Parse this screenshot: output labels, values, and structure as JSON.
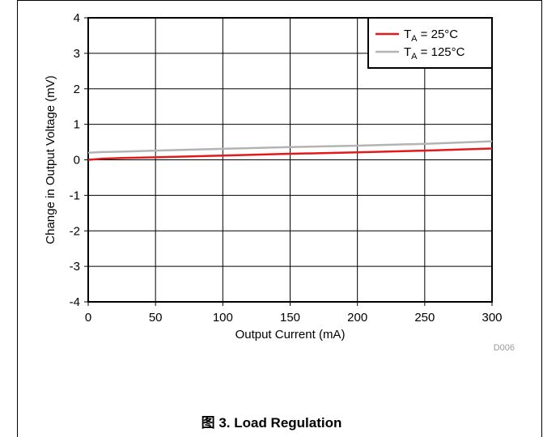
{
  "figure": {
    "caption": "图 3. Load Regulation",
    "code": "D006"
  },
  "chart_data": {
    "type": "line",
    "xlabel": "Output Current (mA)",
    "ylabel": "Change in Output Voltage (mV)",
    "xlim": [
      0,
      300
    ],
    "ylim": [
      -4,
      4
    ],
    "xticks": [
      0,
      50,
      100,
      150,
      200,
      250,
      300
    ],
    "yticks": [
      -4,
      -3,
      -2,
      -1,
      0,
      1,
      2,
      3,
      4
    ],
    "grid": true,
    "legend_position": "top-right",
    "series": [
      {
        "name_main": "T",
        "name_sub": "A",
        "name_rest": " = 25°C",
        "color": "#e31a1c",
        "x": [
          0,
          10,
          25,
          50,
          100,
          150,
          200,
          250,
          300
        ],
        "y": [
          0.0,
          0.03,
          0.05,
          0.07,
          0.12,
          0.17,
          0.21,
          0.26,
          0.32
        ]
      },
      {
        "name_main": "T",
        "name_sub": "A",
        "name_rest": " = 125°C",
        "color": "#b3b3b3",
        "x": [
          0,
          10,
          25,
          50,
          100,
          150,
          200,
          250,
          300
        ],
        "y": [
          0.2,
          0.22,
          0.23,
          0.26,
          0.31,
          0.36,
          0.4,
          0.45,
          0.52
        ]
      }
    ]
  }
}
